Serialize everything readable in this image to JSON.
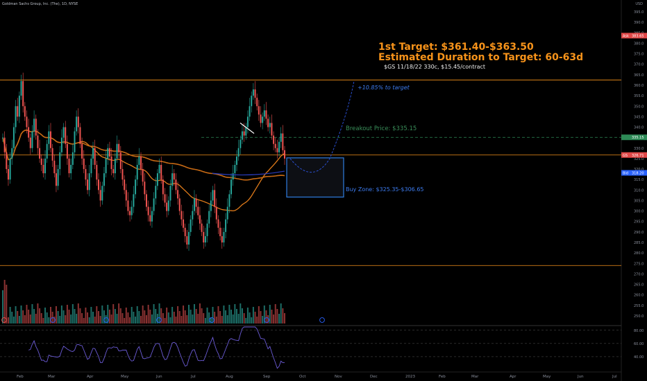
{
  "header": {
    "title": "Goldman Sachs Group, Inc. (The), 1D, NYSE",
    "currency": "USD"
  },
  "annotations": {
    "target_line1": "1st Target: $361.40-$363.50",
    "target_line2": "Estimated Duration to Target: 60-63d",
    "contract": "$GS 11/18/22 330c, $15.45/contract",
    "pct_to_target": "+10.85% to target",
    "breakout": "Breakout Price: $335.15",
    "buy_zone": "Buy Zone: $325.35-$306.65"
  },
  "price_badges": [
    {
      "label": "Ask",
      "value": "383.65",
      "color": "#e04848"
    },
    {
      "label": "",
      "value": "335.15",
      "color": "#2e8b57"
    },
    {
      "label": "GS",
      "value": "326.71",
      "color": "#e04848"
    },
    {
      "label": "Bid",
      "value": "318.20",
      "color": "#2962ff"
    }
  ],
  "chart_data": {
    "type": "candlestick",
    "x_ticks": [
      "Feb",
      "Mar",
      "Apr",
      "May",
      "Jun",
      "Jul",
      "Aug",
      "Sep",
      "Oct",
      "Nov",
      "Dec",
      "2023",
      "Feb",
      "Mar",
      "Apr",
      "May",
      "Jun",
      "Jul"
    ],
    "y_ticks": [
      250,
      255,
      260,
      265,
      270,
      275,
      280,
      285,
      290,
      295,
      300,
      305,
      310,
      315,
      320,
      325,
      330,
      335,
      340,
      345,
      350,
      355,
      360,
      365,
      370,
      375,
      380,
      385,
      390,
      395
    ],
    "ylim": [
      247,
      398
    ],
    "close_series": [
      335,
      328,
      320,
      315,
      325,
      330,
      340,
      350,
      345,
      355,
      362,
      350,
      345,
      340,
      335,
      330,
      338,
      344,
      336,
      330,
      325,
      322,
      318,
      325,
      332,
      338,
      330,
      324,
      318,
      312,
      320,
      328,
      335,
      340,
      332,
      325,
      318,
      322,
      328,
      338,
      345,
      340,
      332,
      325,
      320,
      315,
      310,
      318,
      325,
      330,
      322,
      315,
      310,
      305,
      312,
      318,
      325,
      330,
      326,
      320,
      318,
      325,
      332,
      328,
      320,
      315,
      310,
      305,
      300,
      298,
      302,
      308,
      315,
      322,
      326,
      320,
      314,
      308,
      302,
      298,
      295,
      300,
      306,
      312,
      318,
      322,
      315,
      308,
      304,
      300,
      305,
      312,
      318,
      315,
      310,
      306,
      300,
      296,
      292,
      288,
      284,
      290,
      296,
      300,
      306,
      302,
      298,
      294,
      290,
      285,
      288,
      294,
      300,
      305,
      310,
      302,
      296,
      292,
      288,
      285,
      290,
      296,
      302,
      308,
      315,
      318,
      322,
      326,
      330,
      334,
      338,
      336,
      340,
      345,
      350,
      355,
      358,
      354,
      350,
      346,
      342,
      345,
      348,
      344,
      340,
      342,
      336,
      332,
      330,
      328,
      333,
      337,
      329,
      325
    ],
    "horizontal_levels": [
      362.5,
      335.15,
      326.71,
      274
    ],
    "buy_zone": [
      306.65,
      325.35
    ],
    "rsi": {
      "ylim": [
        20,
        85
      ],
      "ticks": [
        40,
        60,
        80
      ]
    }
  }
}
